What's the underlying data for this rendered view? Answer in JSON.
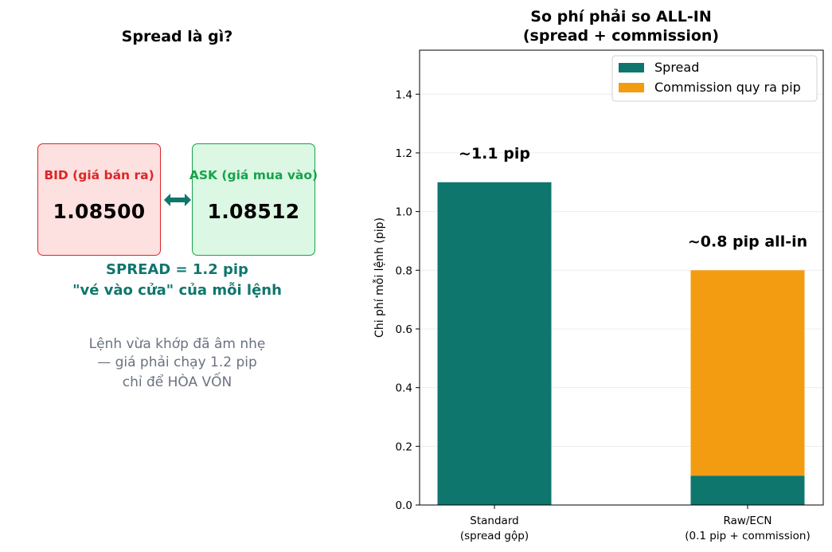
{
  "left_panel": {
    "title": "Spread là gì?",
    "bid": {
      "label": "BID (giá bán ra)",
      "value": "1.08500",
      "color": "#dc2626"
    },
    "ask": {
      "label": "ASK (giá mua vào)",
      "value": "1.08512",
      "color": "#16a34a"
    },
    "spread_line1": "SPREAD = 1.2 pip",
    "spread_line2": "\"vé vào cửa\" của mỗi lệnh",
    "note_line1": "Lệnh vừa khớp đã âm nhẹ",
    "note_line2": "— giá phải chạy 1.2 pip",
    "note_line3": "chỉ để HÒA VỐN"
  },
  "chart_data": {
    "type": "bar",
    "stacked": true,
    "title": "So phí phải so ALL-IN\n(spread + commission)",
    "ylabel": "Chi phí mỗi lệnh (pip)",
    "xlabel": "",
    "categories": [
      "Standard\n(spread gộp)",
      "Raw/ECN\n(0.1 pip + commission)"
    ],
    "series": [
      {
        "name": "Spread",
        "values": [
          1.1,
          0.1
        ],
        "color": "#0f766e"
      },
      {
        "name": "Commission quy ra pip",
        "values": [
          0,
          0.7
        ],
        "color": "#f39c12"
      }
    ],
    "annotations": [
      "~1.1 pip",
      "~0.8 pip all-in"
    ],
    "ylim": [
      0,
      1.55
    ],
    "yticks": [
      0.0,
      0.2,
      0.4,
      0.6,
      0.8,
      1.0,
      1.2,
      1.4
    ],
    "grid": "y",
    "legend": "top-right"
  }
}
